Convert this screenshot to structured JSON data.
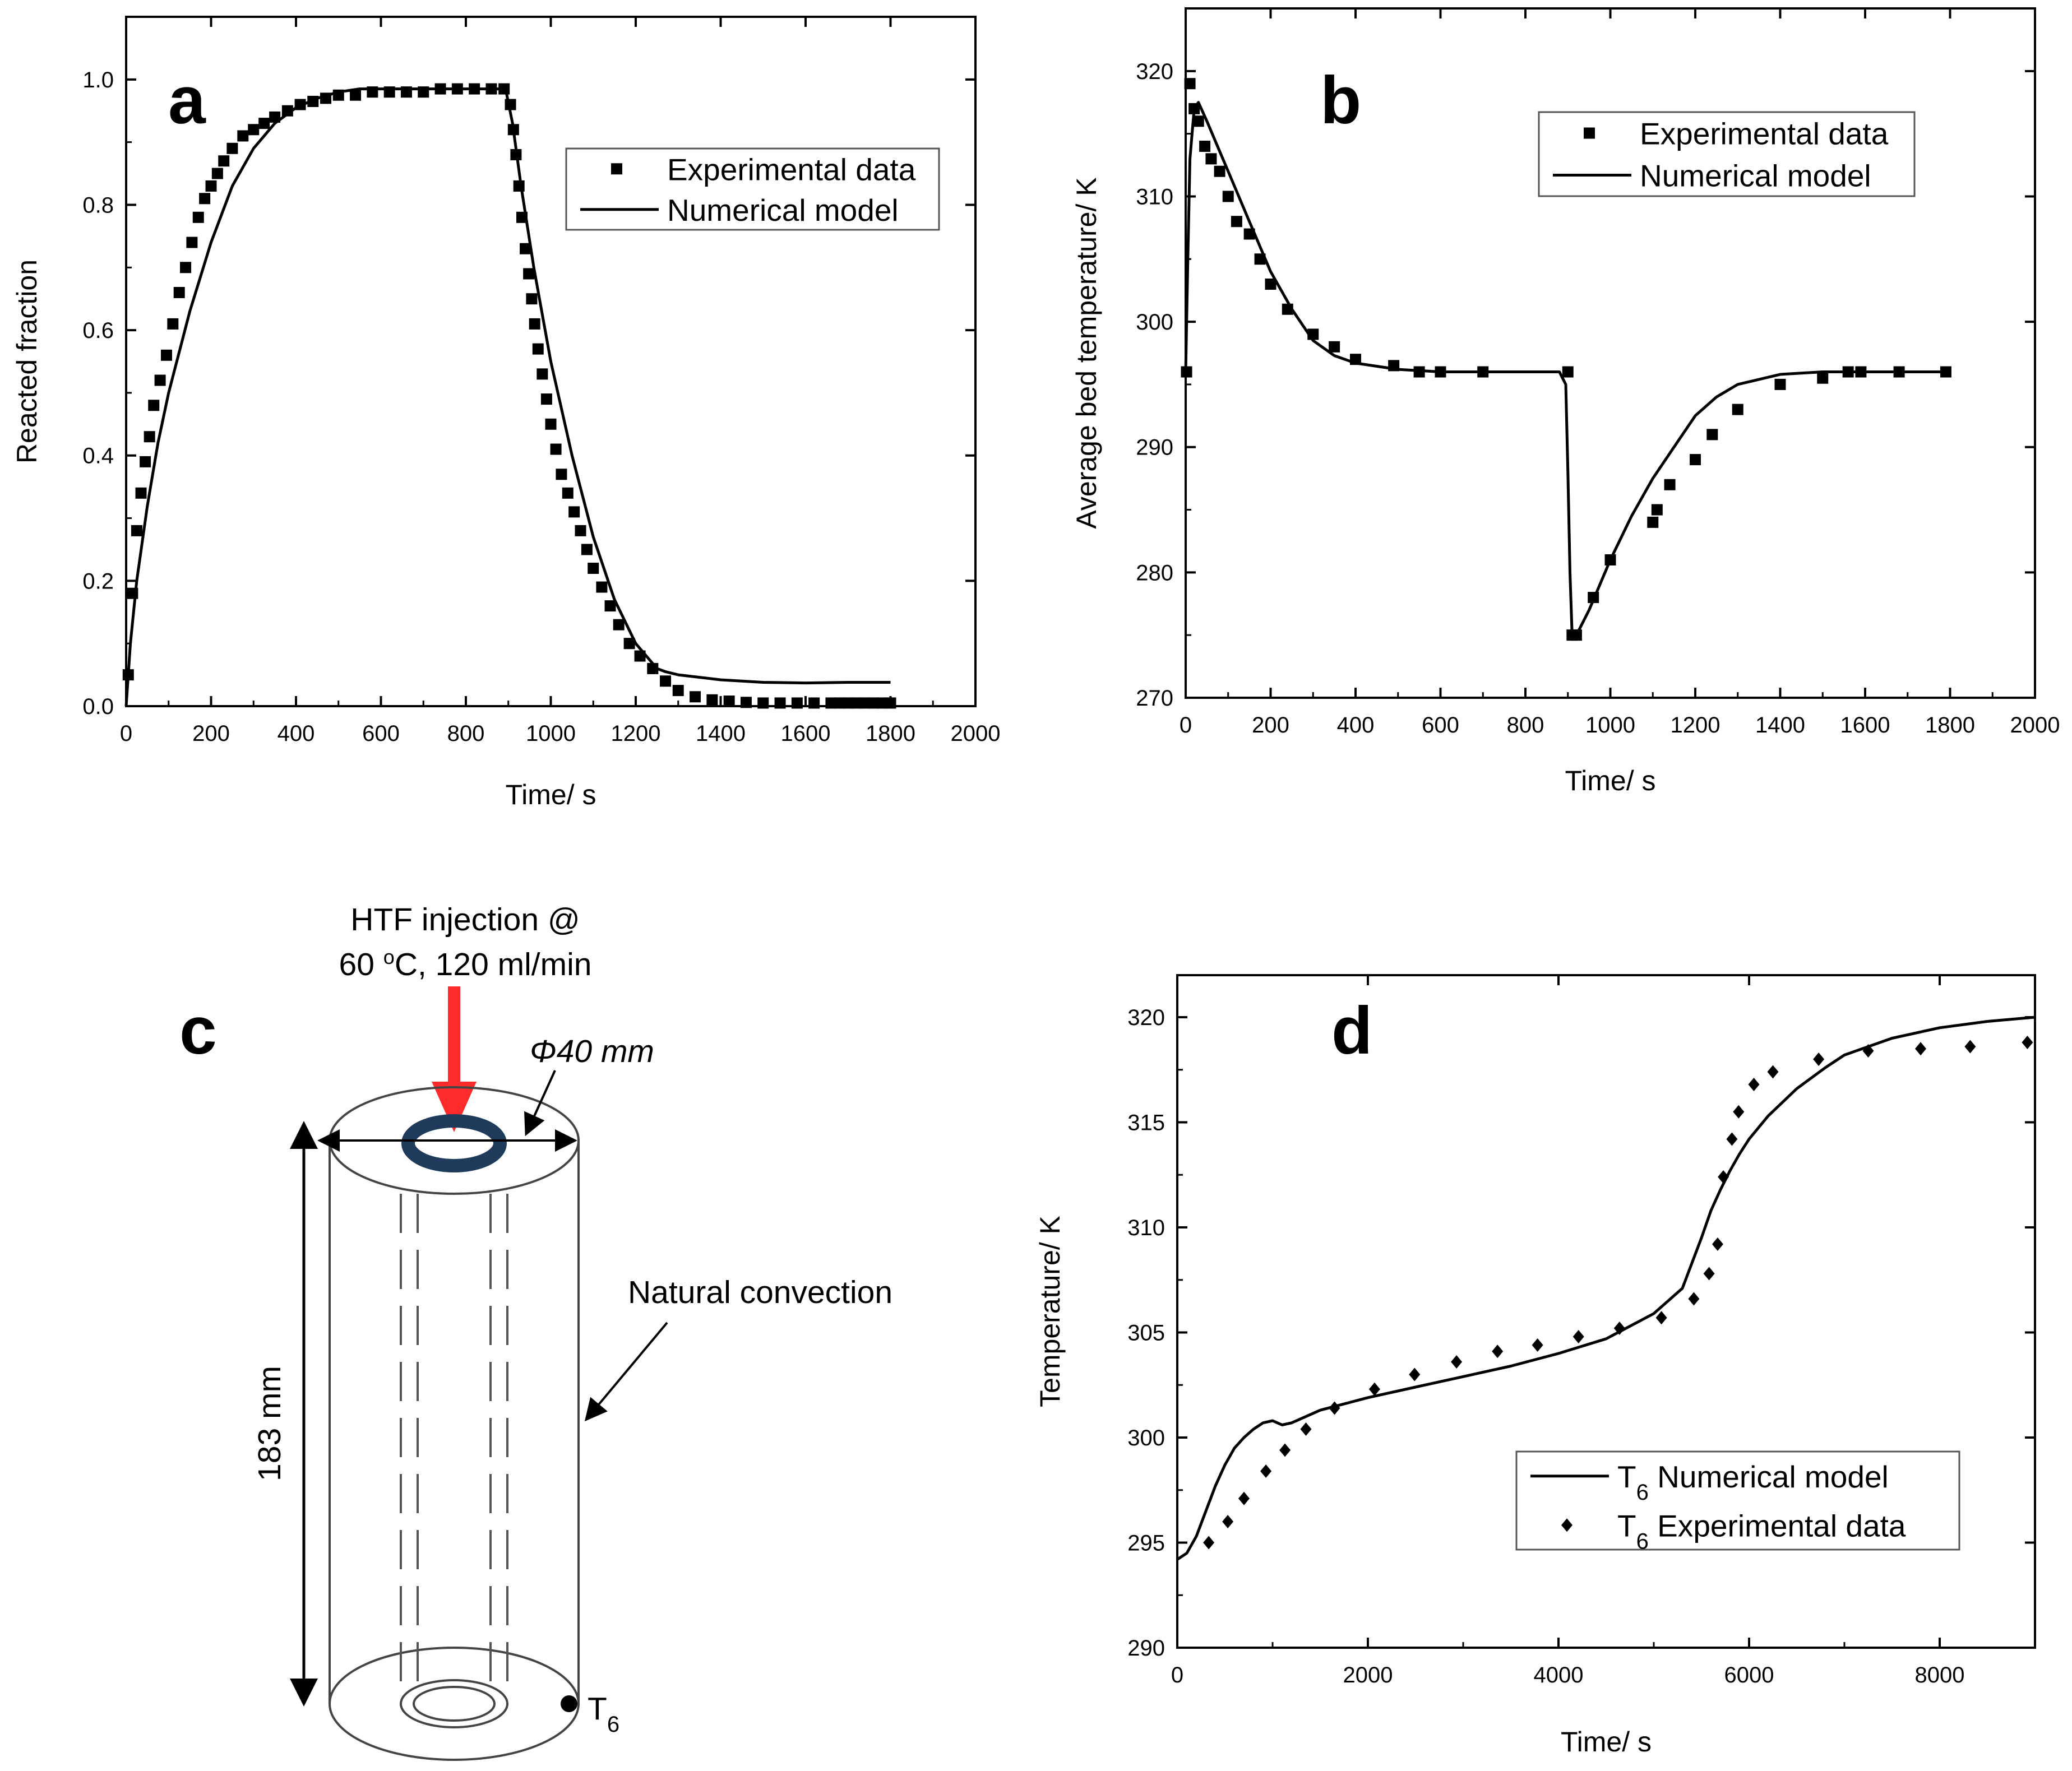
{
  "chart_data": [
    {
      "type": "scatter",
      "panel_label": "a",
      "xlabel": "Time/ s",
      "ylabel": "Reacted fraction",
      "xlim": [
        0,
        2000
      ],
      "ylim": [
        0,
        1.1
      ],
      "xticks": [
        0,
        200,
        400,
        600,
        800,
        1000,
        1200,
        1400,
        1600,
        1800,
        2000
      ],
      "yticks": [
        0.0,
        0.2,
        0.4,
        0.6,
        0.8,
        1.0
      ],
      "ytick_decimals": 1,
      "legend": {
        "position": "upper-right",
        "entries": [
          "Experimental data",
          "Numerical model"
        ]
      },
      "series": [
        {
          "name": "Experimental data",
          "marker": "square",
          "x": [
            5,
            15,
            25,
            35,
            45,
            55,
            65,
            80,
            95,
            110,
            125,
            140,
            155,
            170,
            185,
            200,
            215,
            230,
            250,
            275,
            300,
            325,
            350,
            380,
            410,
            440,
            470,
            500,
            540,
            580,
            620,
            660,
            700,
            740,
            780,
            820,
            860,
            890,
            905,
            912,
            918,
            925,
            932,
            940,
            948,
            955,
            962,
            970,
            980,
            990,
            1000,
            1012,
            1025,
            1040,
            1055,
            1070,
            1085,
            1100,
            1120,
            1140,
            1160,
            1185,
            1210,
            1240,
            1270,
            1300,
            1340,
            1380,
            1420,
            1460,
            1500,
            1540,
            1580,
            1620,
            1660,
            1680,
            1700,
            1720,
            1740,
            1760,
            1780,
            1800
          ],
          "y": [
            0.05,
            0.18,
            0.28,
            0.34,
            0.39,
            0.43,
            0.48,
            0.52,
            0.56,
            0.61,
            0.66,
            0.7,
            0.74,
            0.78,
            0.81,
            0.83,
            0.85,
            0.87,
            0.89,
            0.91,
            0.92,
            0.93,
            0.94,
            0.95,
            0.96,
            0.965,
            0.97,
            0.975,
            0.975,
            0.98,
            0.98,
            0.98,
            0.98,
            0.985,
            0.985,
            0.985,
            0.985,
            0.985,
            0.96,
            0.92,
            0.88,
            0.83,
            0.78,
            0.73,
            0.69,
            0.65,
            0.61,
            0.57,
            0.53,
            0.49,
            0.45,
            0.41,
            0.37,
            0.34,
            0.31,
            0.28,
            0.25,
            0.22,
            0.19,
            0.16,
            0.13,
            0.1,
            0.08,
            0.06,
            0.04,
            0.025,
            0.015,
            0.01,
            0.008,
            0.006,
            0.005,
            0.005,
            0.005,
            0.005,
            0.005,
            0.005,
            0.005,
            0.005,
            0.005,
            0.005,
            0.005,
            0.005
          ]
        },
        {
          "name": "Numerical model",
          "marker": "line",
          "x": [
            0,
            10,
            25,
            50,
            75,
            100,
            150,
            200,
            250,
            300,
            350,
            400,
            450,
            500,
            550,
            600,
            700,
            800,
            880,
            895,
            910,
            930,
            960,
            1000,
            1050,
            1100,
            1150,
            1200,
            1250,
            1270,
            1300,
            1400,
            1500,
            1600,
            1700,
            1800
          ],
          "y": [
            0,
            0.1,
            0.2,
            0.32,
            0.42,
            0.5,
            0.63,
            0.74,
            0.83,
            0.89,
            0.93,
            0.955,
            0.97,
            0.98,
            0.985,
            0.985,
            0.985,
            0.985,
            0.985,
            0.98,
            0.93,
            0.83,
            0.7,
            0.55,
            0.4,
            0.27,
            0.17,
            0.1,
            0.06,
            0.055,
            0.05,
            0.042,
            0.038,
            0.037,
            0.038,
            0.038
          ]
        }
      ]
    },
    {
      "type": "scatter",
      "panel_label": "b",
      "xlabel": "Time/ s",
      "ylabel": "Average bed temperature/ K",
      "xlim": [
        0,
        2000
      ],
      "ylim": [
        270,
        325
      ],
      "xticks": [
        0,
        200,
        400,
        600,
        800,
        1000,
        1200,
        1400,
        1600,
        1800,
        2000
      ],
      "yticks": [
        270,
        280,
        290,
        300,
        310,
        320
      ],
      "ytick_decimals": 0,
      "legend": {
        "position": "upper-right",
        "entries": [
          "Experimental data",
          "Numerical model"
        ]
      },
      "series": [
        {
          "name": "Experimental data",
          "marker": "square",
          "x": [
            2,
            10,
            20,
            30,
            45,
            60,
            80,
            100,
            120,
            150,
            175,
            200,
            240,
            300,
            350,
            400,
            490,
            550,
            600,
            700,
            900,
            910,
            920,
            960,
            1000,
            1100,
            1110,
            1140,
            1200,
            1240,
            1300,
            1400,
            1500,
            1560,
            1590,
            1680,
            1790
          ],
          "y": [
            296,
            319,
            317,
            316,
            314,
            313,
            312,
            310,
            308,
            307,
            305,
            303,
            301,
            299,
            298,
            297,
            296.5,
            296,
            296,
            296,
            296,
            275,
            275,
            278,
            281,
            284,
            285,
            287,
            289,
            291,
            293,
            295,
            295.5,
            296,
            296,
            296,
            296
          ]
        },
        {
          "name": "Numerical model",
          "marker": "line",
          "x": [
            0,
            5,
            10,
            20,
            30,
            50,
            75,
            100,
            150,
            200,
            250,
            300,
            350,
            400,
            500,
            600,
            700,
            800,
            880,
            895,
            900,
            905,
            910,
            920,
            950,
            1000,
            1050,
            1100,
            1150,
            1200,
            1250,
            1300,
            1400,
            1500,
            1600,
            1700,
            1790
          ],
          "y": [
            296,
            305,
            313,
            317,
            317.5,
            316,
            314,
            312,
            308,
            304,
            301,
            298.5,
            297.3,
            296.7,
            296.2,
            296,
            296,
            296,
            296,
            295,
            288,
            280,
            275,
            275,
            277,
            281,
            284.5,
            287.5,
            290,
            292.5,
            294,
            295,
            295.8,
            296,
            296,
            296,
            296
          ]
        }
      ]
    },
    {
      "type": "scatter",
      "panel_label": "d",
      "xlabel": "Time/ s",
      "ylabel": "Temperature/ K",
      "xlim": [
        0,
        9000
      ],
      "ylim": [
        290,
        322
      ],
      "xticks": [
        0,
        2000,
        4000,
        6000,
        8000
      ],
      "yticks": [
        290,
        295,
        300,
        305,
        310,
        315,
        320
      ],
      "ytick_decimals": 0,
      "legend": {
        "position": "lower-right",
        "entries": [
          "Numerical model",
          "Experimental data"
        ],
        "prefix": "T",
        "subscript": "6"
      },
      "series": [
        {
          "name": "Numerical model",
          "marker": "line",
          "x": [
            0,
            100,
            200,
            300,
            400,
            500,
            600,
            700,
            800,
            900,
            1000,
            1100,
            1200,
            1500,
            2000,
            2500,
            3000,
            3500,
            4000,
            4500,
            5000,
            5300,
            5500,
            5600,
            5700,
            5800,
            5900,
            6000,
            6200,
            6500,
            6800,
            7000,
            7500,
            8000,
            8500,
            9000
          ],
          "y": [
            294.2,
            294.5,
            295.3,
            296.5,
            297.7,
            298.7,
            299.5,
            300,
            300.4,
            300.7,
            300.8,
            300.6,
            300.7,
            301.3,
            301.9,
            302.4,
            302.9,
            303.4,
            304,
            304.7,
            305.9,
            307.1,
            309.5,
            310.8,
            311.8,
            312.7,
            313.5,
            314.2,
            315.3,
            316.6,
            317.6,
            318.2,
            319,
            319.5,
            319.8,
            320
          ]
        },
        {
          "name": "Experimental data",
          "marker": "diamond",
          "x": [
            330,
            530,
            700,
            930,
            1130,
            1350,
            1650,
            2070,
            2490,
            2930,
            3360,
            3780,
            4210,
            4640,
            5080,
            5420,
            5580,
            5670,
            5730,
            5820,
            5890,
            6050,
            6250,
            6730,
            7250,
            7800,
            8320,
            8920
          ],
          "y": [
            295,
            296,
            297.1,
            298.4,
            299.4,
            300.4,
            301.4,
            302.3,
            303,
            303.6,
            304.1,
            304.4,
            304.8,
            305.2,
            305.7,
            306.6,
            307.8,
            309.2,
            312.4,
            314.2,
            315.5,
            316.8,
            317.4,
            318,
            318.4,
            318.5,
            318.6,
            318.8
          ]
        }
      ]
    }
  ],
  "diagram_c": {
    "panel_label": "c",
    "injection_label_line1": "HTF injection @",
    "injection_label_line2_prefix": "60 ",
    "injection_label_degree": "o",
    "injection_label_line2_suffix": "C, 120 ml/min",
    "diameter_label": "Φ40 mm",
    "height_label": "183 mm",
    "convection_label": "Natural convection",
    "sensor_label_main": "T",
    "sensor_label_sub": "6",
    "colors": {
      "arrow": "#ff2a2a",
      "ring": "#1f3b5c"
    }
  }
}
